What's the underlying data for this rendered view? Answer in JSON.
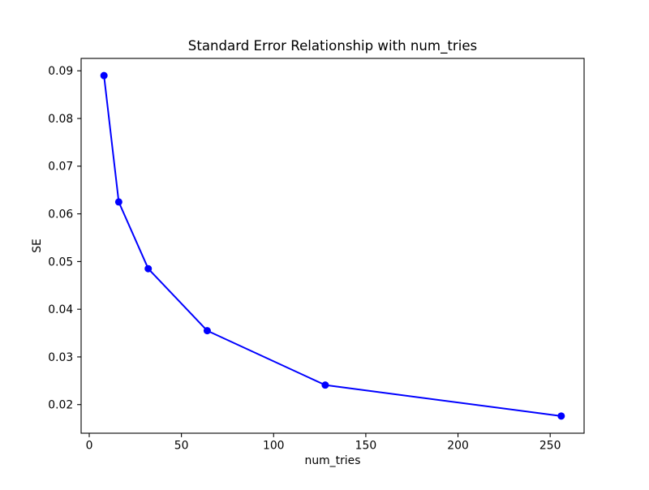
{
  "chart_data": {
    "type": "line",
    "title": "Standard Error Relationship with num_tries",
    "xlabel": "num_tries",
    "ylabel": "SE",
    "series_name": "SE",
    "x": [
      8,
      16,
      32,
      64,
      128,
      256
    ],
    "y": [
      0.089,
      0.0625,
      0.0485,
      0.0355,
      0.0241,
      0.0176
    ],
    "xticks": [
      0,
      50,
      100,
      150,
      200,
      250
    ],
    "xtick_labels": [
      "0",
      "50",
      "100",
      "150",
      "200",
      "250"
    ],
    "yticks": [
      0.02,
      0.03,
      0.04,
      0.05,
      0.06,
      0.07,
      0.08,
      0.09
    ],
    "ytick_labels": [
      "0.02",
      "0.03",
      "0.04",
      "0.05",
      "0.06",
      "0.07",
      "0.08",
      "0.09"
    ],
    "xlim": [
      -4.4,
      268.4
    ],
    "ylim": [
      0.014,
      0.0926
    ],
    "line_color": "#0000ff",
    "marker": "circle",
    "marker_color": "#0000ff",
    "grid": false,
    "legend": null,
    "background_color": "#ffffff",
    "spine_color": "#000000",
    "text_color": "#000000"
  }
}
